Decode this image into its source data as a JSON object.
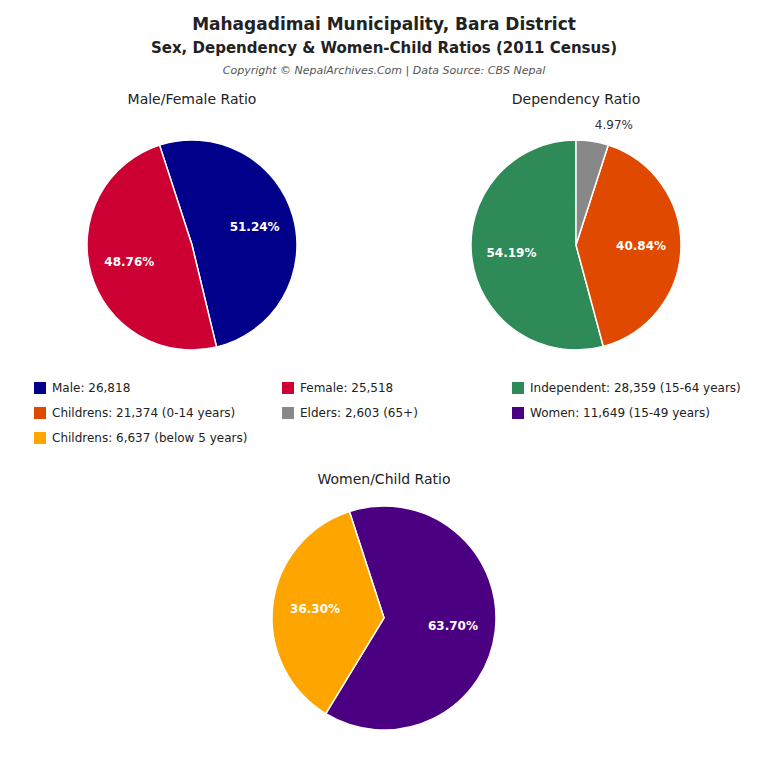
{
  "title": "Mahagadimai Municipality, Bara District",
  "subtitle": "Sex, Dependency & Women-Child Ratios (2011 Census)",
  "annotations": [
    "Copyright © NepalArchives.Com | Data Source: CBS Nepal"
  ],
  "chart_data": [
    {
      "type": "pie",
      "title": "Male/Female Ratio",
      "categories": [
        "Male: 26,818",
        "Female: 25,518"
      ],
      "values": [
        51.24,
        48.76
      ],
      "value_labels": [
        "51.24%",
        "48.76%"
      ],
      "colors": [
        "#00008B",
        "#CC0033"
      ],
      "data_labels": true,
      "legend": "center"
    },
    {
      "type": "pie",
      "title": "Dependency Ratio",
      "categories": [
        "Independent: 28,359 (15-64 years)",
        "Childrens: 21,374 (0-14 years)",
        "Elders: 2,603 (65+)"
      ],
      "values": [
        54.19,
        40.84,
        4.97
      ],
      "value_labels": [
        "54.19%",
        "40.84%",
        "4.97%"
      ],
      "colors": [
        "#2E8B57",
        "#E04A00",
        "#888888"
      ],
      "data_labels": true,
      "legend": "center"
    },
    {
      "type": "pie",
      "title": "Women/Child Ratio",
      "categories": [
        "Women: 11,649 (15-49 years)",
        "Childrens: 6,637 (below 5 years)"
      ],
      "values": [
        63.7,
        36.3
      ],
      "value_labels": [
        "63.70%",
        "36.30%"
      ],
      "colors": [
        "#4B0082",
        "#FFA500"
      ],
      "data_labels": true,
      "legend": "center"
    }
  ]
}
